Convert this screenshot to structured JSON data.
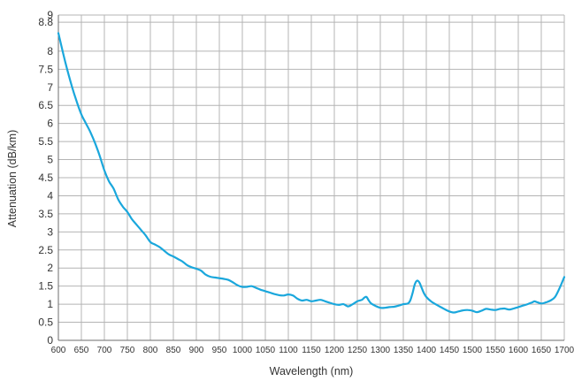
{
  "chart_data": {
    "type": "line",
    "title": "",
    "xlabel": "Wavelength (nm)",
    "ylabel": "Attenuation (dB/km)",
    "xlim": [
      600,
      1700
    ],
    "ylim": [
      0,
      9
    ],
    "grid": true,
    "line_color": "#1aa7dc",
    "grid_color": "#b4b4b4",
    "axis_color": "#6e6e6e",
    "x_ticks": [
      "600",
      "650",
      "700",
      "750",
      "800",
      "850",
      "900",
      "950",
      "1000",
      "1050",
      "1100",
      "1150",
      "1200",
      "1250",
      "1300",
      "1350",
      "1400",
      "1450",
      "1500",
      "1550",
      "1600",
      "1650",
      "1700"
    ],
    "y_ticks": [
      "0",
      "0.5",
      "1",
      "1.5",
      "2",
      "2.5",
      "3",
      "3.5",
      "4",
      "4.5",
      "5",
      "5.5",
      "6",
      "6.5",
      "7",
      "7.5",
      "8",
      "8.8",
      "9"
    ],
    "series": [
      {
        "x": [
          600,
          615,
          630,
          640,
          650,
          660,
          670,
          680,
          690,
          700,
          710,
          720,
          730,
          740,
          750,
          760,
          770,
          780,
          790,
          800,
          810,
          820,
          830,
          840,
          850,
          860,
          870,
          880,
          890,
          900,
          910,
          920,
          930,
          940,
          950,
          960,
          970,
          980,
          990,
          1000,
          1010,
          1020,
          1030,
          1040,
          1050,
          1060,
          1070,
          1080,
          1090,
          1100,
          1110,
          1120,
          1130,
          1140,
          1150,
          1160,
          1170,
          1180,
          1190,
          1200,
          1210,
          1220,
          1230,
          1240,
          1250,
          1260,
          1265,
          1270,
          1275,
          1280,
          1290,
          1300,
          1310,
          1320,
          1330,
          1340,
          1350,
          1360,
          1365,
          1370,
          1375,
          1380,
          1385,
          1390,
          1395,
          1400,
          1410,
          1420,
          1430,
          1440,
          1450,
          1460,
          1470,
          1480,
          1490,
          1500,
          1510,
          1520,
          1530,
          1540,
          1550,
          1560,
          1570,
          1580,
          1590,
          1600,
          1610,
          1620,
          1630,
          1635,
          1640,
          1650,
          1660,
          1670,
          1680,
          1690,
          1700
        ],
        "y": [
          8.5,
          7.7,
          7.0,
          6.6,
          6.25,
          6.0,
          5.75,
          5.45,
          5.1,
          4.7,
          4.4,
          4.2,
          3.9,
          3.7,
          3.55,
          3.35,
          3.2,
          3.05,
          2.9,
          2.72,
          2.65,
          2.58,
          2.48,
          2.38,
          2.32,
          2.25,
          2.18,
          2.08,
          2.02,
          1.98,
          1.93,
          1.82,
          1.76,
          1.74,
          1.72,
          1.7,
          1.67,
          1.6,
          1.52,
          1.48,
          1.48,
          1.5,
          1.45,
          1.4,
          1.36,
          1.32,
          1.28,
          1.25,
          1.24,
          1.27,
          1.24,
          1.15,
          1.1,
          1.12,
          1.08,
          1.1,
          1.12,
          1.08,
          1.04,
          1.0,
          0.98,
          1.0,
          0.94,
          1.0,
          1.08,
          1.12,
          1.18,
          1.2,
          1.1,
          1.02,
          0.95,
          0.9,
          0.9,
          0.92,
          0.93,
          0.96,
          1.0,
          1.02,
          1.1,
          1.3,
          1.55,
          1.65,
          1.6,
          1.45,
          1.3,
          1.2,
          1.08,
          1.0,
          0.93,
          0.86,
          0.8,
          0.77,
          0.8,
          0.83,
          0.84,
          0.82,
          0.78,
          0.82,
          0.87,
          0.85,
          0.84,
          0.87,
          0.88,
          0.85,
          0.88,
          0.92,
          0.96,
          1.0,
          1.05,
          1.08,
          1.06,
          1.02,
          1.05,
          1.1,
          1.2,
          1.45,
          1.75
        ]
      }
    ]
  }
}
